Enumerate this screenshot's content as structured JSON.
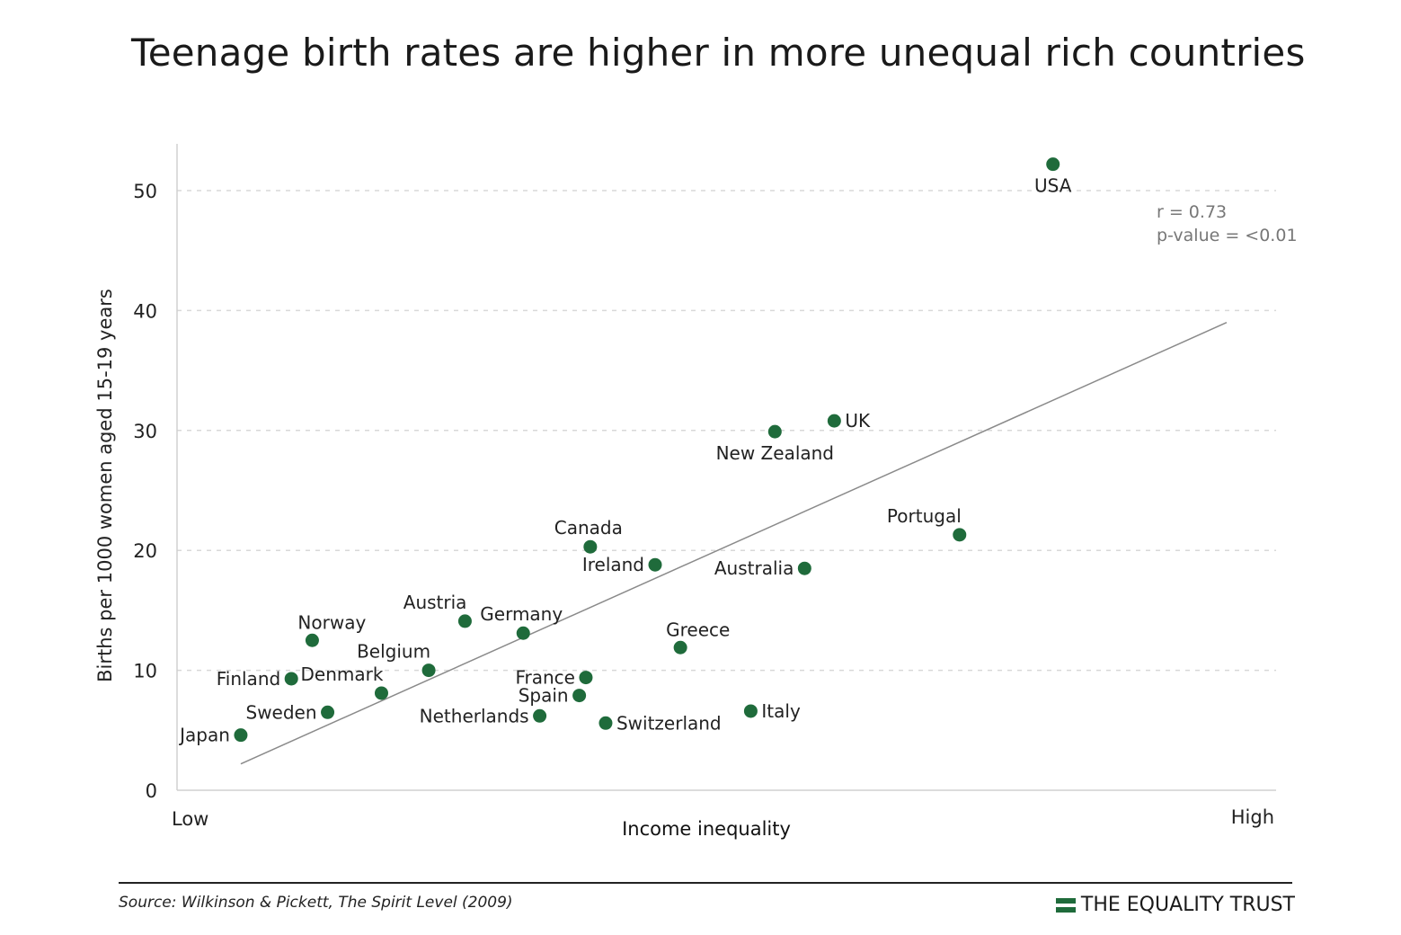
{
  "title": "Teenage birth rates are higher in more unequal rich countries",
  "footer": {
    "source": "Source: Wilkinson & Pickett, The Spirit Level (2009)",
    "brand_name": "THE EQUALITY TRUST",
    "brand_color": "#1f6b3b"
  },
  "colors": {
    "point": "#1f6b3b",
    "trendline": "#8a8a8a",
    "grid": "#d8d8d8",
    "axis": "#d0d0d0",
    "text": "#222222",
    "stats_text": "#777777"
  },
  "chart_data": {
    "type": "scatter",
    "title": "Teenage birth rates are higher in more unequal rich countries",
    "xlabel": "Income inequality",
    "ylabel": "Births per 1000 women aged 15-19 years",
    "x_tick_labels": {
      "low": "Low",
      "high": "High"
    },
    "xlim": [
      0,
      100
    ],
    "ylim": [
      0,
      54
    ],
    "y_ticks": [
      0,
      10,
      20,
      30,
      40,
      50
    ],
    "grid": "horizontal-dashed",
    "annotation": [
      "r = 0.73",
      "p-value = <0.01"
    ],
    "trendline": {
      "x": [
        5.8,
        95.5
      ],
      "y": [
        2.2,
        39
      ]
    },
    "points": [
      {
        "label": "USA",
        "x": 79.7,
        "y": 52.2,
        "label_pos": "below"
      },
      {
        "label": "UK",
        "x": 59.8,
        "y": 30.8,
        "label_pos": "right"
      },
      {
        "label": "New Zealand",
        "x": 54.4,
        "y": 29.9,
        "label_pos": "below"
      },
      {
        "label": "Portugal",
        "x": 71.2,
        "y": 21.3,
        "label_pos": "above-left"
      },
      {
        "label": "Canada",
        "x": 37.6,
        "y": 20.3,
        "label_pos": "above"
      },
      {
        "label": "Ireland",
        "x": 43.5,
        "y": 18.8,
        "label_pos": "left"
      },
      {
        "label": "Australia",
        "x": 57.1,
        "y": 18.5,
        "label_pos": "left"
      },
      {
        "label": "Austria",
        "x": 26.2,
        "y": 14.1,
        "label_pos": "above-left"
      },
      {
        "label": "Germany",
        "x": 31.5,
        "y": 13.1,
        "label_pos": "above"
      },
      {
        "label": "Norway",
        "x": 12.3,
        "y": 12.5,
        "label_pos": "above-right"
      },
      {
        "label": "Greece",
        "x": 45.8,
        "y": 11.9,
        "label_pos": "above-right"
      },
      {
        "label": "Belgium",
        "x": 22.9,
        "y": 10.0,
        "label_pos": "above-left"
      },
      {
        "label": "Finland",
        "x": 10.4,
        "y": 9.3,
        "label_pos": "left"
      },
      {
        "label": "France",
        "x": 37.2,
        "y": 9.4,
        "label_pos": "left"
      },
      {
        "label": "Denmark",
        "x": 18.6,
        "y": 8.1,
        "label_pos": "above-left"
      },
      {
        "label": "Spain",
        "x": 36.6,
        "y": 7.9,
        "label_pos": "left"
      },
      {
        "label": "Sweden",
        "x": 13.7,
        "y": 6.5,
        "label_pos": "left"
      },
      {
        "label": "Italy",
        "x": 52.2,
        "y": 6.6,
        "label_pos": "right"
      },
      {
        "label": "Netherlands",
        "x": 33.0,
        "y": 6.2,
        "label_pos": "left"
      },
      {
        "label": "Switzerland",
        "x": 39.0,
        "y": 5.6,
        "label_pos": "right"
      },
      {
        "label": "Japan",
        "x": 5.8,
        "y": 4.6,
        "label_pos": "left"
      }
    ]
  }
}
